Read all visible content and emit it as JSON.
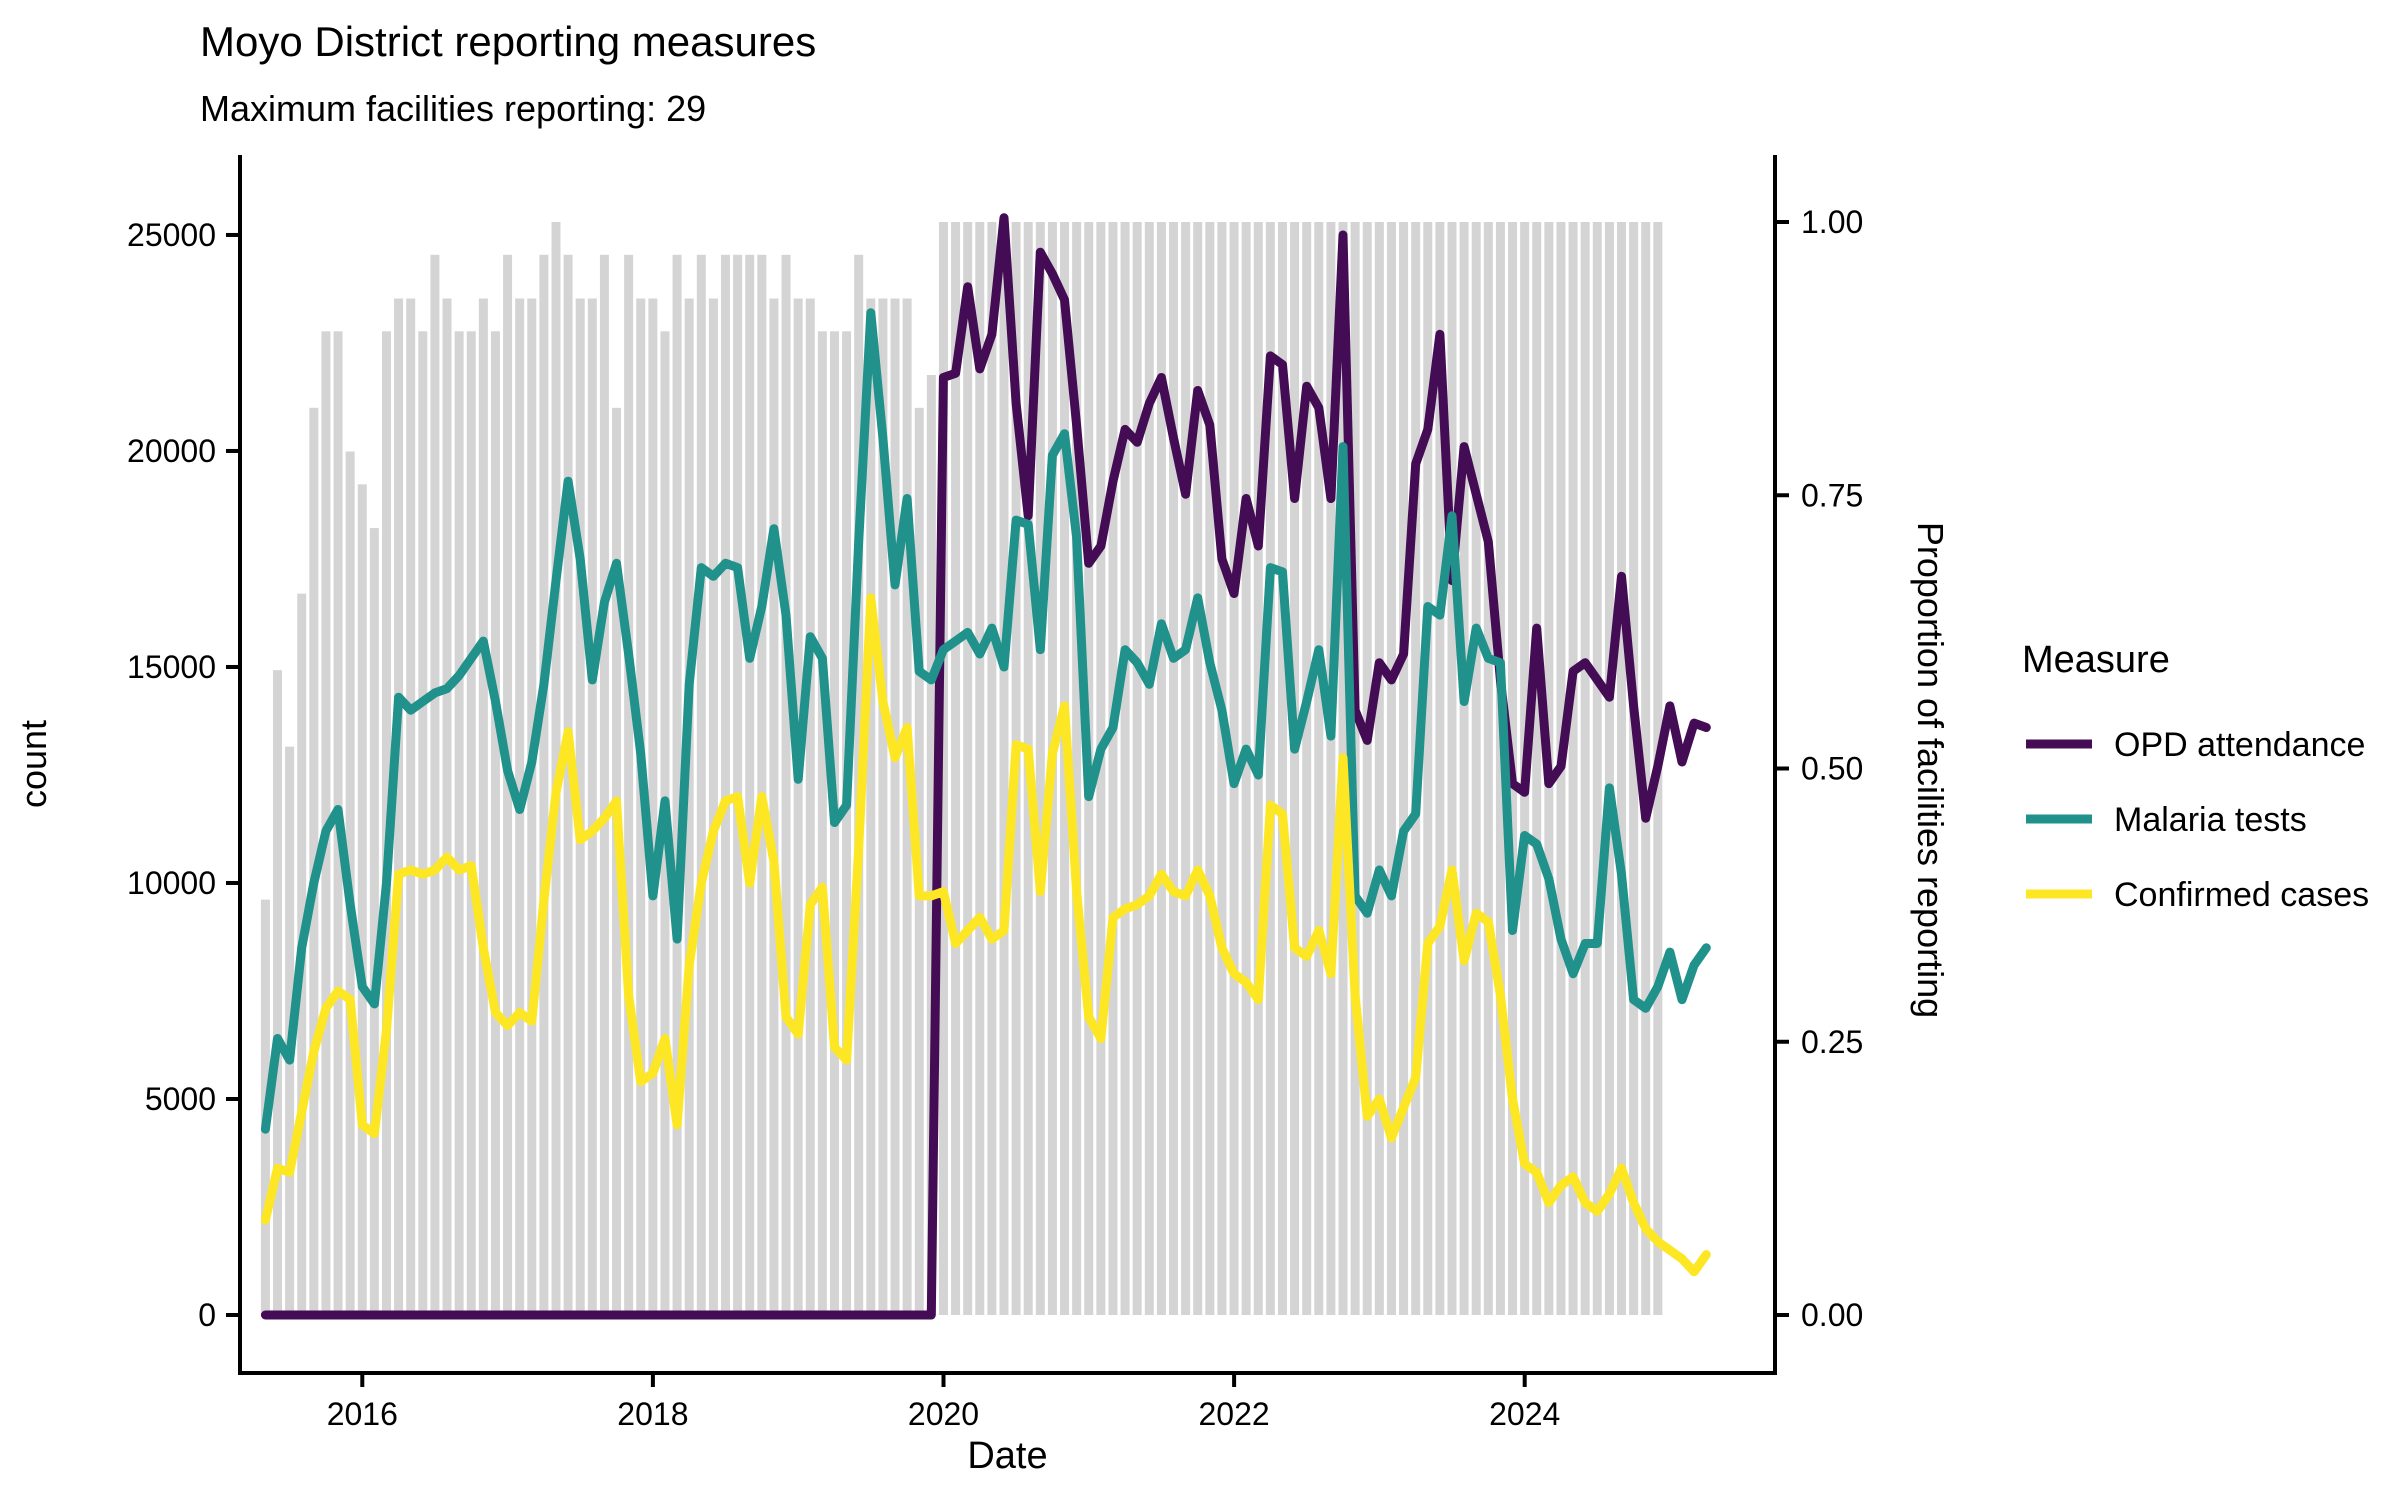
{
  "header": {
    "title": "Moyo District reporting measures",
    "subtitle": "Maximum facilities reporting: 29"
  },
  "legend": {
    "title": "Measure",
    "items": [
      {
        "label": "OPD attendance",
        "color": "#440c54"
      },
      {
        "label": "Malaria tests",
        "color": "#21918c"
      },
      {
        "label": "Confirmed cases",
        "color": "#fde725"
      }
    ]
  },
  "colors": {
    "bars": "#d4d4d4",
    "opd": "#440c54",
    "malaria": "#21918c",
    "confirmed": "#fde725",
    "axis": "#000000"
  },
  "chart_data": {
    "type": "line+bar combo (monthly time series with background proportion bars)",
    "title": "Moyo District reporting measures",
    "subtitle": "Maximum facilities reporting: 29",
    "xlabel": "Date",
    "ylabel_left": "count",
    "ylabel_right": "Proportion of facilities reporting",
    "x_tick_labels": [
      "2016",
      "2018",
      "2020",
      "2022",
      "2024"
    ],
    "y_left_ticks": [
      0,
      5000,
      10000,
      15000,
      20000,
      25000
    ],
    "y_right_ticks": [
      "0.00",
      "0.25",
      "0.50",
      "0.75",
      "1.00"
    ],
    "y_left_range": [
      0,
      25300
    ],
    "y_right_range": [
      0,
      1
    ],
    "grid": "off",
    "legend_position": "right",
    "start_month": "2015-05",
    "n_months": 120,
    "max_facilities": 29,
    "bars_meaning": "Proportion of facilities reporting (right axis), gray background bars, 1.00 = 29 facilities",
    "proportion_reporting": [
      0.38,
      0.59,
      0.52,
      0.66,
      0.83,
      0.9,
      0.9,
      0.79,
      0.76,
      0.72,
      0.9,
      0.93,
      0.93,
      0.9,
      0.97,
      0.93,
      0.9,
      0.9,
      0.93,
      0.9,
      0.97,
      0.93,
      0.93,
      0.97,
      1.0,
      0.97,
      0.93,
      0.93,
      0.97,
      0.83,
      0.97,
      0.93,
      0.93,
      0.9,
      0.97,
      0.93,
      0.97,
      0.93,
      0.97,
      0.97,
      0.97,
      0.97,
      0.93,
      0.97,
      0.93,
      0.93,
      0.9,
      0.9,
      0.9,
      0.97,
      0.93,
      0.93,
      0.93,
      0.93,
      0.83,
      0.86,
      1.0,
      1.0,
      1.0,
      1.0,
      1.0,
      1.0,
      1.0,
      1.0,
      1.0,
      1.0,
      1.0,
      1.0,
      1.0,
      1.0,
      1.0,
      1.0,
      1.0,
      1.0,
      1.0,
      1.0,
      1.0,
      1.0,
      1.0,
      1.0,
      1.0,
      1.0,
      1.0,
      1.0,
      1.0,
      1.0,
      1.0,
      1.0,
      1.0,
      1.0,
      1.0,
      1.0,
      1.0,
      1.0,
      1.0,
      1.0,
      1.0,
      1.0,
      1.0,
      1.0,
      1.0,
      1.0,
      1.0,
      1.0,
      1.0,
      1.0,
      1.0,
      1.0,
      1.0,
      1.0,
      1.0,
      1.0,
      1.0,
      1.0,
      1.0,
      1.0
    ],
    "series": [
      {
        "name": "OPD attendance",
        "values": [
          0,
          0,
          0,
          0,
          0,
          0,
          0,
          0,
          0,
          0,
          0,
          0,
          0,
          0,
          0,
          0,
          0,
          0,
          0,
          0,
          0,
          0,
          0,
          0,
          0,
          0,
          0,
          0,
          0,
          0,
          0,
          0,
          0,
          0,
          0,
          0,
          0,
          0,
          0,
          0,
          0,
          0,
          0,
          0,
          0,
          0,
          0,
          0,
          0,
          0,
          0,
          0,
          0,
          0,
          0,
          0,
          21700,
          21800,
          23800,
          21900,
          22700,
          25400,
          21100,
          18500,
          24600,
          24100,
          23500,
          20600,
          17400,
          17800,
          19300,
          20500,
          20200,
          21100,
          21700,
          20300,
          19000,
          21400,
          20600,
          17500,
          16700,
          18900,
          17800,
          22200,
          22000,
          18900,
          21500,
          21000,
          18900,
          25000,
          14000,
          13300,
          15100,
          14700,
          15300,
          19700,
          20500,
          22700,
          17000,
          20100,
          19000,
          17900,
          14700,
          12300,
          12100,
          15900,
          12300,
          12700,
          14900,
          15100,
          14700,
          14300,
          17100,
          14100,
          11500,
          12700,
          14100,
          12800,
          13700,
          13600
        ]
      },
      {
        "name": "Malaria tests",
        "values": [
          4300,
          6400,
          5900,
          8500,
          10000,
          11200,
          11700,
          9500,
          7600,
          7200,
          10000,
          14300,
          14000,
          14200,
          14400,
          14500,
          14800,
          15200,
          15600,
          14200,
          12600,
          11700,
          12800,
          14600,
          17000,
          19300,
          17500,
          14700,
          16500,
          17400,
          15300,
          13000,
          9700,
          11900,
          8700,
          14600,
          17300,
          17100,
          17400,
          17300,
          15200,
          16400,
          18200,
          16200,
          12400,
          15700,
          15200,
          11400,
          11800,
          17900,
          23200,
          20300,
          16900,
          18900,
          14900,
          14700,
          15400,
          15600,
          15800,
          15300,
          15900,
          15000,
          18400,
          18300,
          15400,
          19900,
          20400,
          18000,
          12000,
          13100,
          13600,
          15400,
          15100,
          14600,
          16000,
          15200,
          15400,
          16600,
          15100,
          14000,
          12300,
          13100,
          12500,
          17300,
          17200,
          13100,
          14200,
          15400,
          13400,
          20100,
          9700,
          9300,
          10300,
          9700,
          11200,
          11600,
          16400,
          16200,
          18500,
          14200,
          15900,
          15200,
          15100,
          8900,
          11100,
          10900,
          10100,
          8700,
          7900,
          8600,
          8600,
          12200,
          10200,
          7300,
          7100,
          7600,
          8400,
          7300,
          8100,
          8500
        ]
      },
      {
        "name": "Confirmed cases",
        "values": [
          2200,
          3400,
          3300,
          4700,
          6100,
          7100,
          7500,
          7300,
          4400,
          4200,
          6600,
          10200,
          10300,
          10200,
          10300,
          10600,
          10300,
          10400,
          8500,
          7000,
          6700,
          7000,
          6800,
          9600,
          12100,
          13500,
          11000,
          11200,
          11500,
          11900,
          7400,
          5400,
          5600,
          6400,
          4400,
          8100,
          10000,
          11200,
          11900,
          12000,
          10000,
          12000,
          10500,
          6900,
          6500,
          9500,
          9900,
          6200,
          5900,
          10800,
          16600,
          14200,
          12900,
          13600,
          9700,
          9700,
          9800,
          8600,
          8900,
          9200,
          8700,
          8900,
          13200,
          13100,
          9800,
          13000,
          14100,
          9800,
          6900,
          6400,
          9200,
          9400,
          9500,
          9700,
          10200,
          9800,
          9700,
          10300,
          9700,
          8500,
          7900,
          7700,
          7300,
          11800,
          11600,
          8500,
          8300,
          8900,
          7900,
          12900,
          7400,
          4600,
          5000,
          4100,
          4800,
          5500,
          8600,
          9000,
          10300,
          8200,
          9300,
          9100,
          7400,
          5000,
          3500,
          3300,
          2600,
          3000,
          3200,
          2600,
          2400,
          2800,
          3400,
          2600,
          2000,
          1700,
          1500,
          1300,
          1000,
          1400
        ]
      }
    ]
  }
}
